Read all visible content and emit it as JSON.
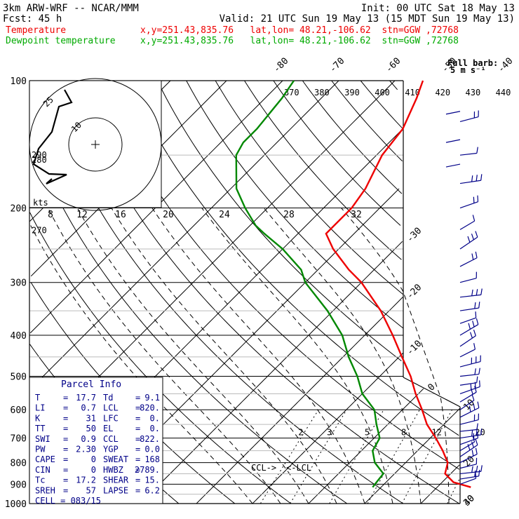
{
  "header": {
    "line1_left": "3km ARW-WRF -- NCAR/MMM",
    "line1_right": "Init: 00 UTC Sat 18 May 13",
    "line2_fcst": "Fcst:   45 h",
    "line2_valid": "Valid: 21 UTC Sun 19 May 13 (15 MDT Sun 19 May 13)",
    "temp_label": "Temperature",
    "temp_info": "x,y=251.43,835.76   lat,lon= 48.21,-106.62  stn=GGW ,72768",
    "dew_label": "Dewpoint temperature",
    "dew_info": "x,y=251.43,835.76   lat,lon= 48.21,-106.62  stn=GGW ,72768",
    "barb_legend_1": "Full barb:",
    "barb_legend_2": "5 m s⁻¹"
  },
  "colors": {
    "temperature": "#ee0000",
    "dewpoint": "#008800",
    "barbs": "#000088",
    "parcel_text": "#000088",
    "hodograph": "#000000"
  },
  "chart_data": {
    "type": "line",
    "subtype": "skew-T log-p",
    "y_axis_scale": "log",
    "ylim": [
      1000,
      100
    ],
    "pressure_ticks": [
      "100",
      "200",
      "300",
      "400",
      "500",
      "600",
      "700",
      "800",
      "900",
      "1000"
    ],
    "temp_ticks_top": [
      "-80",
      "-70",
      "-60",
      "-50",
      "-40"
    ],
    "temp_ticks_right": [
      "-30",
      "-20",
      "-10",
      "0",
      "10",
      "20",
      "30",
      "40"
    ],
    "theta_labels": [
      "370",
      "380",
      "390",
      "400",
      "410",
      "420",
      "430",
      "440"
    ],
    "theta_left_labels": [
      "290",
      "280",
      "270"
    ],
    "mixing_ratio_labels": [
      "2",
      "3",
      "5",
      "8",
      "12",
      "20"
    ],
    "ccl_label": "CCL->",
    "lcl_label": "<-LCL",
    "series": [
      {
        "name": "Temperature",
        "points": [
          [
            915,
            26
          ],
          [
            890,
            22
          ],
          [
            850,
            19
          ],
          [
            800,
            17.5
          ],
          [
            750,
            14.5
          ],
          [
            700,
            11
          ],
          [
            650,
            7
          ],
          [
            600,
            3.5
          ],
          [
            550,
            -0.5
          ],
          [
            500,
            -4.5
          ],
          [
            450,
            -9.5
          ],
          [
            400,
            -15
          ],
          [
            350,
            -21.5
          ],
          [
            300,
            -30
          ],
          [
            280,
            -34.5
          ],
          [
            250,
            -41
          ],
          [
            230,
            -45
          ],
          [
            220,
            -45
          ],
          [
            200,
            -45
          ],
          [
            180,
            -46
          ],
          [
            150,
            -49
          ],
          [
            130,
            -50
          ],
          [
            110,
            -53
          ],
          [
            100,
            -55
          ]
        ]
      },
      {
        "name": "Dewpoint temperature",
        "points": [
          [
            915,
            8.5
          ],
          [
            890,
            8.3
          ],
          [
            850,
            8
          ],
          [
            800,
            4.5
          ],
          [
            750,
            2
          ],
          [
            700,
            1
          ],
          [
            650,
            -2
          ],
          [
            600,
            -5
          ],
          [
            550,
            -10
          ],
          [
            500,
            -14
          ],
          [
            450,
            -19
          ],
          [
            400,
            -24
          ],
          [
            350,
            -31
          ],
          [
            300,
            -40
          ],
          [
            280,
            -43
          ],
          [
            250,
            -50
          ],
          [
            230,
            -56
          ],
          [
            220,
            -59
          ],
          [
            200,
            -64
          ],
          [
            180,
            -69
          ],
          [
            150,
            -75
          ],
          [
            140,
            -76
          ],
          [
            130,
            -76
          ],
          [
            110,
            -77
          ],
          [
            100,
            -78
          ]
        ]
      }
    ],
    "wind_barbs_note": "wind barbs drawn along right side from 900 to 100 hPa"
  },
  "hodograph": {
    "ring_labels": [
      "10",
      "25"
    ],
    "speed_ticks": [
      "8",
      "12",
      "16",
      "20",
      "24",
      "28",
      "32"
    ],
    "units": "kts"
  },
  "parcel_info": {
    "title": "Parcel Info",
    "rows": [
      {
        "k1": "T",
        "v1": "17.7",
        "k2": "Td",
        "v2": "9.1"
      },
      {
        "k1": "LI",
        "v1": "0.7",
        "k2": "LCL",
        "v2": "820."
      },
      {
        "k1": "K",
        "v1": "31",
        "k2": "LFC",
        "v2": "0."
      },
      {
        "k1": "TT",
        "v1": "50",
        "k2": "EL",
        "v2": "0."
      },
      {
        "k1": "SWI",
        "v1": "0.9",
        "k2": "CCL",
        "v2": "822."
      },
      {
        "k1": "PW",
        "v1": "2.30",
        "k2": "YGP",
        "v2": "0.0"
      },
      {
        "k1": "CAPE",
        "v1": "0",
        "k2": "SWEAT",
        "v2": "168"
      },
      {
        "k1": "CIN",
        "v1": "0",
        "k2": "HWBZ",
        "v2": "2789."
      },
      {
        "k1": "Tc",
        "v1": "17.2",
        "k2": "SHEAR",
        "v2": "15."
      },
      {
        "k1": "SREH",
        "v1": "57",
        "k2": "LAPSE",
        "v2": "6.2"
      },
      {
        "k1": "CELL",
        "v1": "083/15",
        "k2": "",
        "v2": ""
      }
    ]
  }
}
